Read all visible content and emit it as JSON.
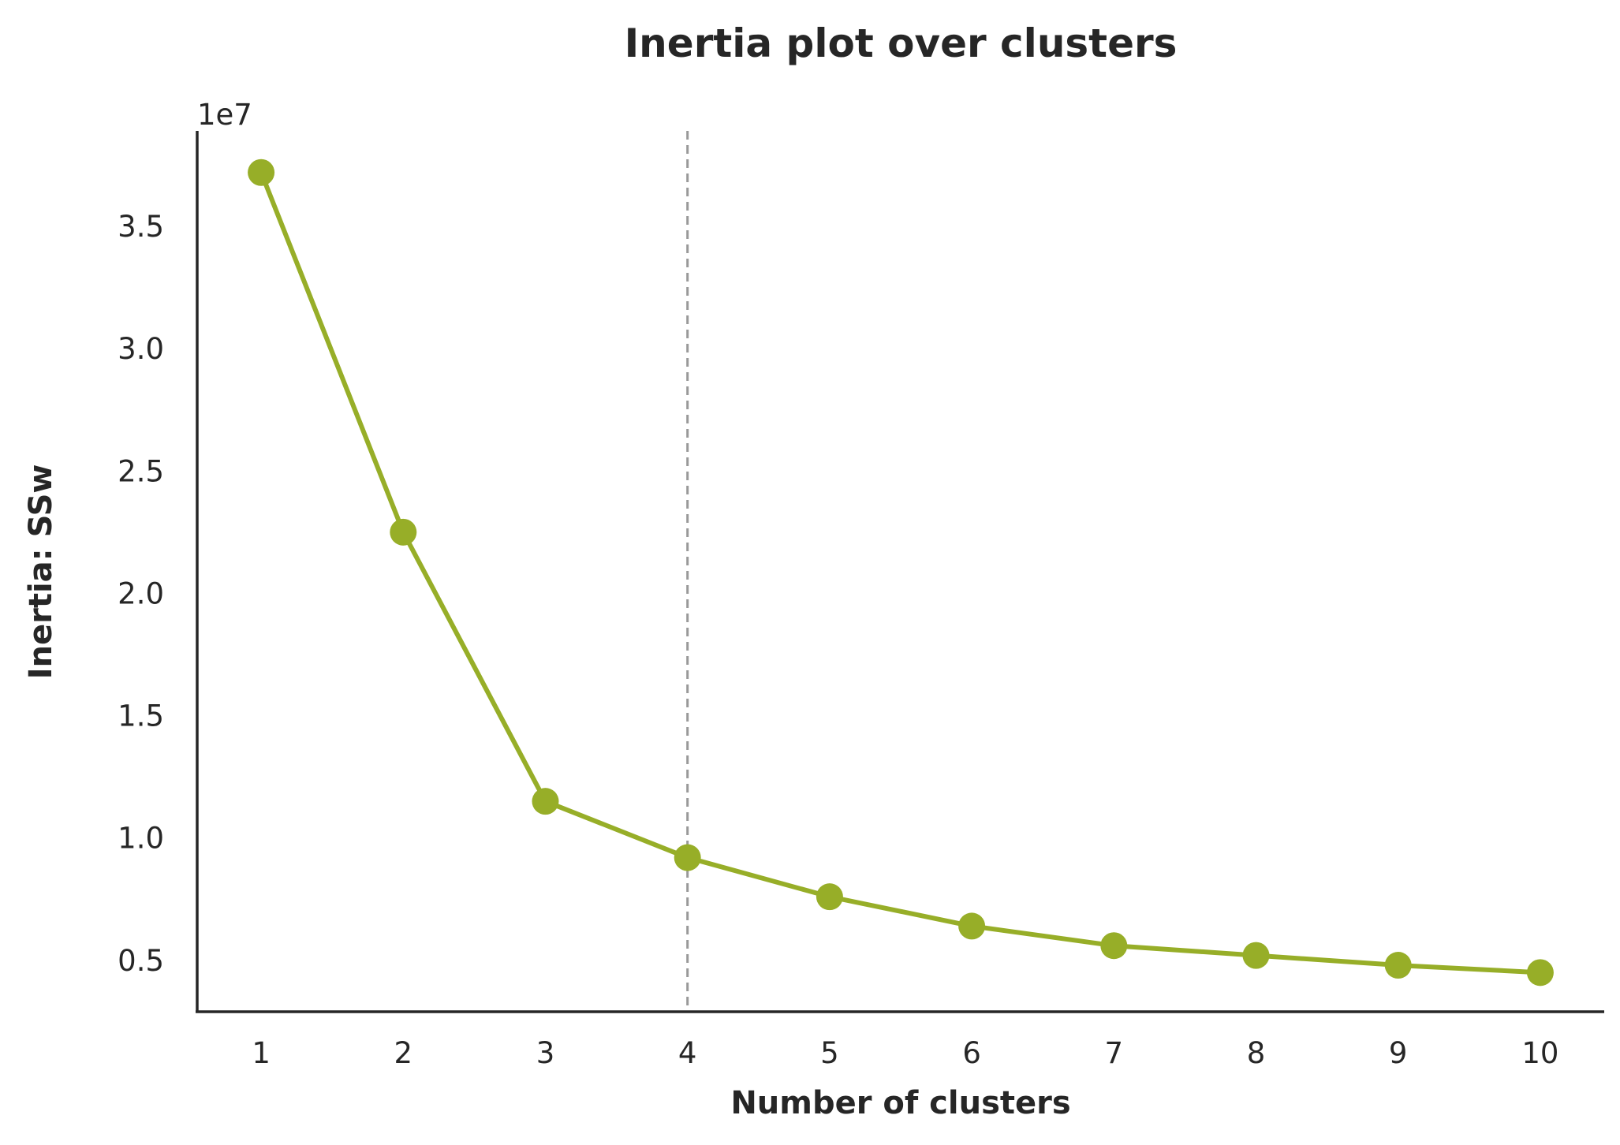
{
  "chart_data": {
    "type": "line",
    "title": "Inertia plot over clusters",
    "xlabel": "Number of clusters",
    "ylabel": "Inertia: SSw",
    "y_offset_label": "1e7",
    "x": [
      1,
      2,
      3,
      4,
      5,
      6,
      7,
      8,
      9,
      10
    ],
    "x_tick_labels": [
      "1",
      "2",
      "3",
      "4",
      "5",
      "6",
      "7",
      "8",
      "9",
      "10"
    ],
    "y_ticks": [
      0.5,
      1.0,
      1.5,
      2.0,
      2.5,
      3.0,
      3.5
    ],
    "y_tick_labels": [
      "0.5",
      "1.0",
      "1.5",
      "2.0",
      "2.5",
      "3.0",
      "3.5"
    ],
    "series": [
      {
        "values": [
          3.72,
          2.25,
          1.15,
          0.92,
          0.76,
          0.64,
          0.56,
          0.52,
          0.48,
          0.45
        ],
        "color": "#97AE28"
      }
    ],
    "xlim": [
      0.55,
      10.45
    ],
    "ylim": [
      0.29,
      3.89
    ],
    "reference_line": {
      "x": 4,
      "color": "#999999",
      "style": "dashed"
    },
    "grid": false,
    "spines": [
      "left",
      "bottom"
    ]
  }
}
